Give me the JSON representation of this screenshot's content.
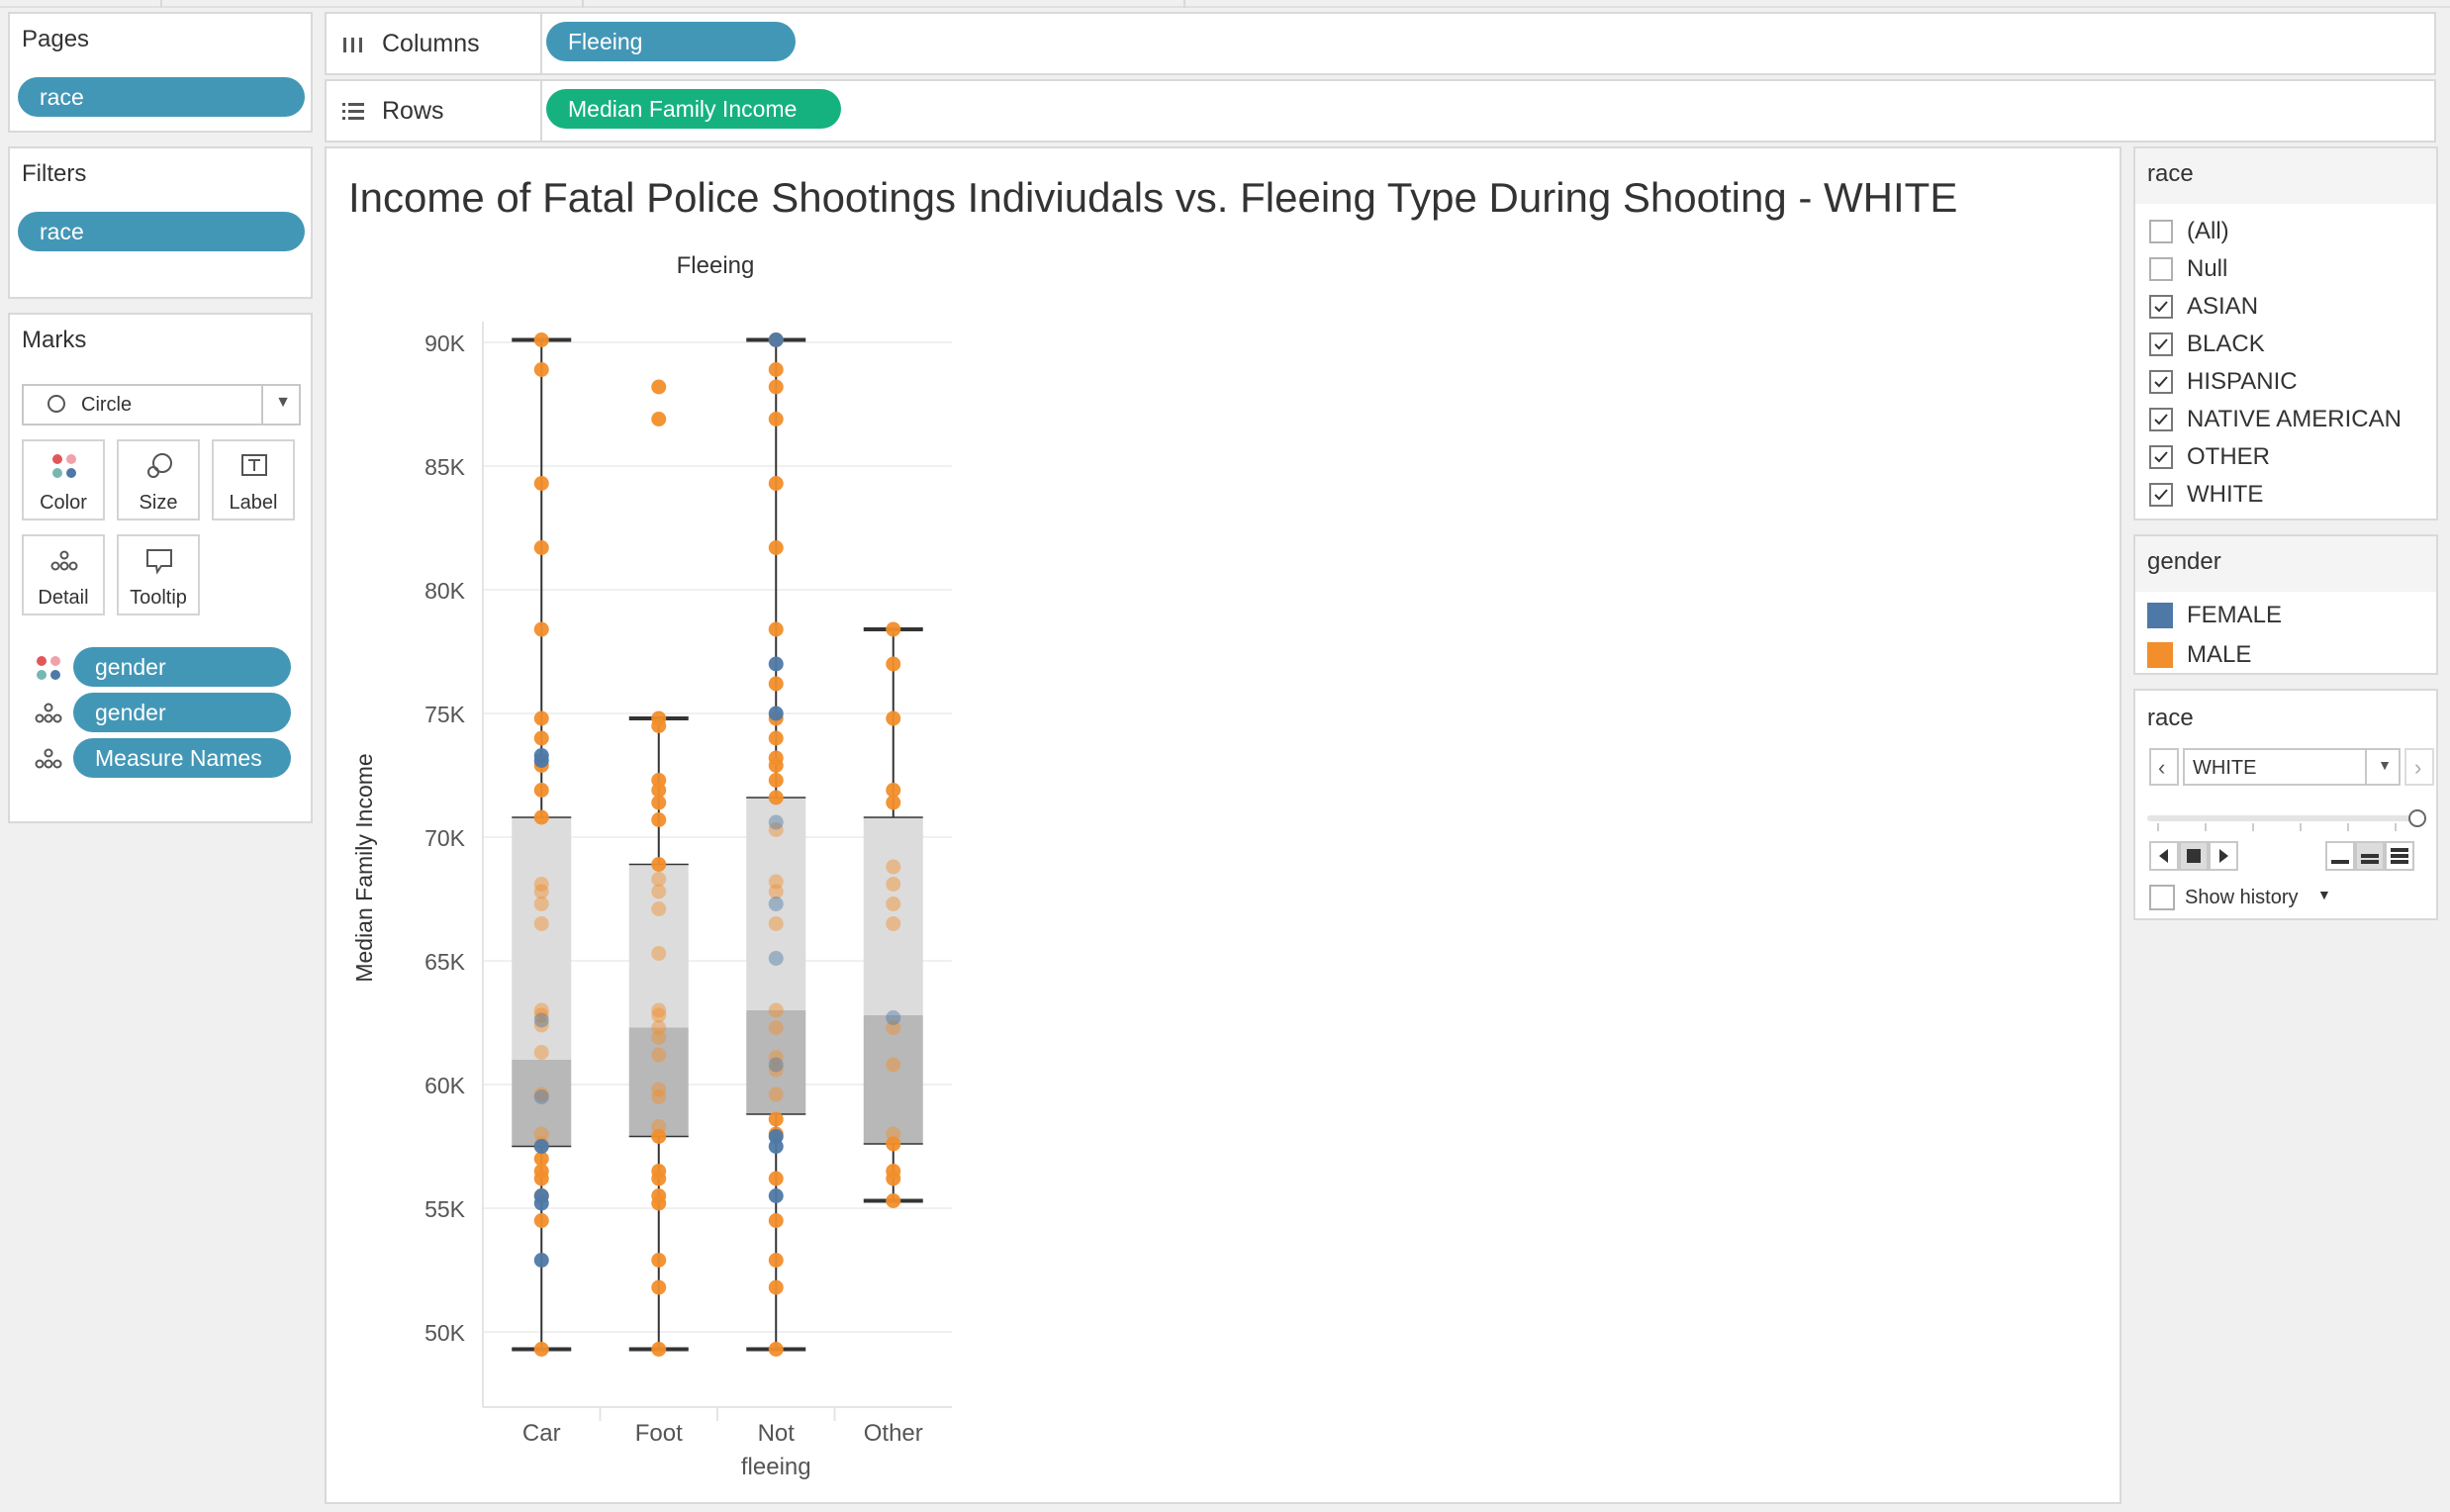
{
  "pages": {
    "title": "Pages",
    "pill": "race"
  },
  "filters": {
    "title": "Filters",
    "pill": "race"
  },
  "marks": {
    "title": "Marks",
    "mark_type": "Circle",
    "buttons": [
      "Color",
      "Size",
      "Label",
      "Detail",
      "Tooltip"
    ],
    "pills": [
      {
        "icon": "color-icon",
        "label": "gender"
      },
      {
        "icon": "detail-icon",
        "label": "gender"
      },
      {
        "icon": "detail-icon",
        "label": "Measure Names"
      }
    ]
  },
  "shelves": {
    "columns_label": "Columns",
    "columns_pill": "Fleeing",
    "rows_label": "Rows",
    "rows_pill": "Median Family Income"
  },
  "race_filter": {
    "title": "race",
    "items": [
      {
        "label": "(All)",
        "checked": false
      },
      {
        "label": "Null",
        "checked": false
      },
      {
        "label": "ASIAN",
        "checked": true
      },
      {
        "label": "BLACK",
        "checked": true
      },
      {
        "label": "HISPANIC",
        "checked": true
      },
      {
        "label": "NATIVE AMERICAN",
        "checked": true
      },
      {
        "label": "OTHER",
        "checked": true
      },
      {
        "label": "WHITE",
        "checked": true
      }
    ]
  },
  "gender_legend": {
    "title": "gender",
    "items": [
      {
        "label": "FEMALE",
        "color": "#4e79a7"
      },
      {
        "label": "MALE",
        "color": "#f28e2b"
      }
    ]
  },
  "page_control": {
    "title": "race",
    "current": "WHITE",
    "show_history": "Show history"
  },
  "chart_data": {
    "type": "box-scatter",
    "title": "Income of Fatal Police Shootings Indiviudals vs. Fleeing Type During Shooting - WHITE",
    "column_header": "Fleeing",
    "ylabel": "Median Family Income",
    "ylim": [
      46000,
      92500
    ],
    "yticks": [
      50000,
      55000,
      60000,
      65000,
      70000,
      75000,
      80000,
      85000,
      90000
    ],
    "ytick_labels": [
      "50K",
      "55K",
      "60K",
      "65K",
      "70K",
      "75K",
      "80K",
      "85K",
      "90K"
    ],
    "categories": [
      "Car",
      "Foot",
      "Not fleeing",
      "Other"
    ],
    "category_labels": [
      [
        "Car"
      ],
      [
        "Foot"
      ],
      [
        "Not",
        "fleeing"
      ],
      [
        "Other"
      ]
    ],
    "colors": {
      "FEMALE": "#4e79a7",
      "MALE": "#f28e2b"
    },
    "boxes": [
      {
        "category": "Car",
        "whisker_low": 49300,
        "q1": 57500,
        "median": 61000,
        "q3": 70800,
        "whisker_high": 90100
      },
      {
        "category": "Foot",
        "whisker_low": 49300,
        "q1": 57900,
        "median": 62300,
        "q3": 68900,
        "whisker_high": 74800
      },
      {
        "category": "Not fleeing",
        "whisker_low": 49300,
        "q1": 58800,
        "median": 63000,
        "q3": 71600,
        "whisker_high": 90100
      },
      {
        "category": "Other",
        "whisker_low": 55300,
        "q1": 57600,
        "median": 62800,
        "q3": 70800,
        "whisker_high": 78400
      }
    ],
    "series": [
      {
        "name": "MALE",
        "points": [
          [
            "Car",
            49300
          ],
          [
            "Car",
            54500
          ],
          [
            "Car",
            55500
          ],
          [
            "Car",
            56200
          ],
          [
            "Car",
            56500
          ],
          [
            "Car",
            57000
          ],
          [
            "Car",
            57600
          ],
          [
            "Car",
            58000
          ],
          [
            "Car",
            59600
          ],
          [
            "Car",
            61300
          ],
          [
            "Car",
            62400
          ],
          [
            "Car",
            62800
          ],
          [
            "Car",
            63000
          ],
          [
            "Car",
            66500
          ],
          [
            "Car",
            67300
          ],
          [
            "Car",
            67800
          ],
          [
            "Car",
            68100
          ],
          [
            "Car",
            70800
          ],
          [
            "Car",
            71900
          ],
          [
            "Car",
            72900
          ],
          [
            "Car",
            74000
          ],
          [
            "Car",
            74800
          ],
          [
            "Car",
            78400
          ],
          [
            "Car",
            81700
          ],
          [
            "Car",
            84300
          ],
          [
            "Car",
            88900
          ],
          [
            "Car",
            90100
          ],
          [
            "Foot",
            49300
          ],
          [
            "Foot",
            51800
          ],
          [
            "Foot",
            52900
          ],
          [
            "Foot",
            55200
          ],
          [
            "Foot",
            55500
          ],
          [
            "Foot",
            56200
          ],
          [
            "Foot",
            56500
          ],
          [
            "Foot",
            57900
          ],
          [
            "Foot",
            58300
          ],
          [
            "Foot",
            59500
          ],
          [
            "Foot",
            59800
          ],
          [
            "Foot",
            61200
          ],
          [
            "Foot",
            61900
          ],
          [
            "Foot",
            62300
          ],
          [
            "Foot",
            62800
          ],
          [
            "Foot",
            63000
          ],
          [
            "Foot",
            65300
          ],
          [
            "Foot",
            67100
          ],
          [
            "Foot",
            67800
          ],
          [
            "Foot",
            68300
          ],
          [
            "Foot",
            68900
          ],
          [
            "Foot",
            70700
          ],
          [
            "Foot",
            71400
          ],
          [
            "Foot",
            71900
          ],
          [
            "Foot",
            72300
          ],
          [
            "Foot",
            74500
          ],
          [
            "Foot",
            74800
          ],
          [
            "Foot",
            86900
          ],
          [
            "Foot",
            88200
          ],
          [
            "Not fleeing",
            49300
          ],
          [
            "Not fleeing",
            51800
          ],
          [
            "Not fleeing",
            52900
          ],
          [
            "Not fleeing",
            54500
          ],
          [
            "Not fleeing",
            56200
          ],
          [
            "Not fleeing",
            58000
          ],
          [
            "Not fleeing",
            58600
          ],
          [
            "Not fleeing",
            59600
          ],
          [
            "Not fleeing",
            60600
          ],
          [
            "Not fleeing",
            61100
          ],
          [
            "Not fleeing",
            62300
          ],
          [
            "Not fleeing",
            63000
          ],
          [
            "Not fleeing",
            66500
          ],
          [
            "Not fleeing",
            67800
          ],
          [
            "Not fleeing",
            68200
          ],
          [
            "Not fleeing",
            70300
          ],
          [
            "Not fleeing",
            71600
          ],
          [
            "Not fleeing",
            72300
          ],
          [
            "Not fleeing",
            72900
          ],
          [
            "Not fleeing",
            73200
          ],
          [
            "Not fleeing",
            74000
          ],
          [
            "Not fleeing",
            74800
          ],
          [
            "Not fleeing",
            76200
          ],
          [
            "Not fleeing",
            78400
          ],
          [
            "Not fleeing",
            81700
          ],
          [
            "Not fleeing",
            84300
          ],
          [
            "Not fleeing",
            86900
          ],
          [
            "Not fleeing",
            88200
          ],
          [
            "Not fleeing",
            88900
          ],
          [
            "Not fleeing",
            90100
          ],
          [
            "Other",
            55300
          ],
          [
            "Other",
            56200
          ],
          [
            "Other",
            56500
          ],
          [
            "Other",
            57600
          ],
          [
            "Other",
            58000
          ],
          [
            "Other",
            60800
          ],
          [
            "Other",
            62300
          ],
          [
            "Other",
            66500
          ],
          [
            "Other",
            67300
          ],
          [
            "Other",
            68100
          ],
          [
            "Other",
            68800
          ],
          [
            "Other",
            71400
          ],
          [
            "Other",
            71900
          ],
          [
            "Other",
            74800
          ],
          [
            "Other",
            77000
          ],
          [
            "Other",
            78400
          ]
        ]
      },
      {
        "name": "FEMALE",
        "points": [
          [
            "Car",
            52900
          ],
          [
            "Car",
            55200
          ],
          [
            "Car",
            55500
          ],
          [
            "Car",
            57500
          ],
          [
            "Car",
            59500
          ],
          [
            "Car",
            62600
          ],
          [
            "Car",
            73100
          ],
          [
            "Car",
            73300
          ],
          [
            "Not fleeing",
            55500
          ],
          [
            "Not fleeing",
            57500
          ],
          [
            "Not fleeing",
            57900
          ],
          [
            "Not fleeing",
            60800
          ],
          [
            "Not fleeing",
            65100
          ],
          [
            "Not fleeing",
            67300
          ],
          [
            "Not fleeing",
            70600
          ],
          [
            "Not fleeing",
            75000
          ],
          [
            "Not fleeing",
            77000
          ],
          [
            "Not fleeing",
            90100
          ],
          [
            "Other",
            62700
          ]
        ]
      }
    ]
  }
}
